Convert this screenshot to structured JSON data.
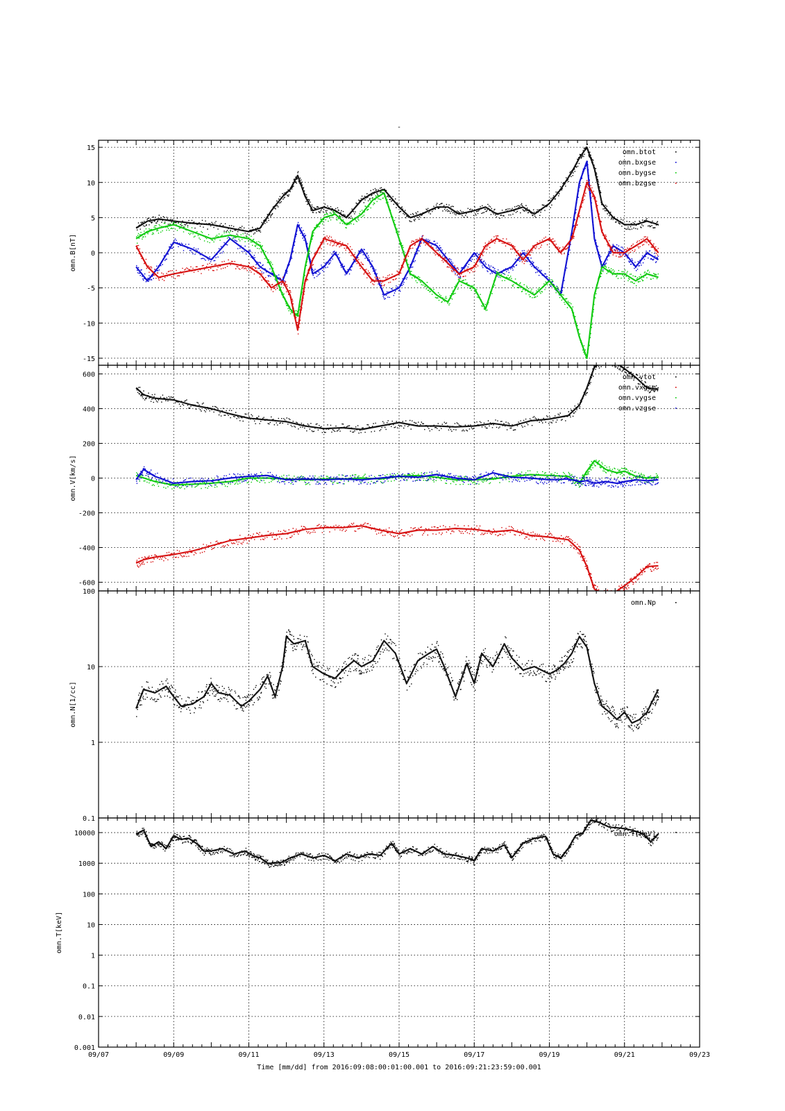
{
  "figure": {
    "title_mark": "-",
    "xaxis_label": "Time [mm/dd]  from 2016:09:08:00:01:00.001  to  2016:09:21:23:59:00.001",
    "xticks": [
      "09/07",
      "09/09",
      "09/11",
      "09/13",
      "09/15",
      "09/17",
      "09/19",
      "09/21",
      "09/23"
    ]
  },
  "colors": {
    "black": "#000000",
    "red": "#d40000",
    "green": "#00c800",
    "blue": "#0000d0"
  },
  "chart_data": [
    {
      "type": "scatter",
      "id": "B",
      "ylabel": "omn.B[nT]",
      "ylim": [
        -16,
        16
      ],
      "yticks": [
        15,
        10,
        5,
        0,
        -5,
        -10,
        -15
      ],
      "ytick_labels": [
        "15",
        "10",
        "5",
        "0",
        "-5",
        "-10",
        "-15"
      ],
      "log": false,
      "legend": "top-right",
      "series": [
        {
          "name": "omn.btot",
          "color": "#000000",
          "x": [
            8.0,
            8.3,
            8.6,
            9.0,
            9.5,
            10.0,
            10.5,
            11.0,
            11.3,
            11.6,
            11.9,
            12.1,
            12.3,
            12.5,
            12.7,
            13.0,
            13.3,
            13.6,
            14.0,
            14.3,
            14.6,
            15.0,
            15.3,
            15.6,
            16.0,
            16.3,
            16.6,
            17.0,
            17.3,
            17.6,
            18.0,
            18.3,
            18.6,
            19.0,
            19.3,
            19.6,
            19.8,
            20.0,
            20.2,
            20.4,
            20.7,
            21.0,
            21.3,
            21.6,
            21.9
          ],
          "y": [
            3.5,
            4.5,
            4.8,
            4.5,
            4.2,
            4.0,
            3.5,
            3.0,
            3.5,
            6.0,
            8.0,
            9.0,
            11.0,
            8.0,
            6.0,
            6.5,
            6.0,
            5.0,
            7.5,
            8.5,
            9.0,
            6.5,
            5.0,
            5.5,
            6.5,
            6.5,
            5.5,
            6.0,
            6.5,
            5.5,
            6.0,
            6.5,
            5.5,
            7.0,
            9.0,
            11.5,
            13.5,
            15.0,
            12.0,
            7.0,
            5.0,
            4.0,
            4.0,
            4.5,
            4.0
          ]
        },
        {
          "name": "omn.bxgse",
          "color": "#0000d0",
          "x": [
            8.0,
            8.3,
            8.6,
            9.0,
            9.5,
            10.0,
            10.5,
            11.0,
            11.3,
            11.6,
            11.9,
            12.1,
            12.3,
            12.5,
            12.7,
            13.0,
            13.3,
            13.6,
            14.0,
            14.3,
            14.6,
            15.0,
            15.3,
            15.6,
            16.0,
            16.3,
            16.6,
            17.0,
            17.3,
            17.6,
            18.0,
            18.3,
            18.6,
            19.0,
            19.3,
            19.6,
            19.8,
            20.0,
            20.2,
            20.4,
            20.7,
            21.0,
            21.3,
            21.6,
            21.9
          ],
          "y": [
            -2.0,
            -4.0,
            -2.0,
            1.5,
            0.5,
            -1.0,
            2.0,
            0.0,
            -2.0,
            -3.0,
            -4.0,
            -1.0,
            4.0,
            2.0,
            -3.0,
            -2.0,
            0.0,
            -3.0,
            0.5,
            -2.0,
            -6.0,
            -5.0,
            -2.0,
            2.0,
            1.0,
            -1.0,
            -3.0,
            0.0,
            -2.0,
            -3.0,
            -2.0,
            0.0,
            -2.0,
            -4.0,
            -6.0,
            3.0,
            10.0,
            13.0,
            2.0,
            -2.0,
            1.0,
            0.0,
            -2.0,
            0.0,
            -1.0
          ]
        },
        {
          "name": "omn.bygse",
          "color": "#00c800",
          "x": [
            8.0,
            8.3,
            8.6,
            9.0,
            9.5,
            10.0,
            10.5,
            11.0,
            11.3,
            11.6,
            11.9,
            12.1,
            12.3,
            12.5,
            12.7,
            13.0,
            13.3,
            13.6,
            14.0,
            14.3,
            14.6,
            15.0,
            15.3,
            15.6,
            16.0,
            16.3,
            16.6,
            17.0,
            17.3,
            17.6,
            18.0,
            18.3,
            18.6,
            19.0,
            19.3,
            19.6,
            19.8,
            20.0,
            20.2,
            20.4,
            20.7,
            21.0,
            21.3,
            21.6,
            21.9
          ],
          "y": [
            2.0,
            3.0,
            3.5,
            4.0,
            3.0,
            2.0,
            2.5,
            2.0,
            1.0,
            -2.0,
            -6.0,
            -8.0,
            -9.0,
            -2.0,
            3.0,
            5.0,
            5.5,
            4.0,
            5.5,
            7.5,
            8.5,
            2.0,
            -3.0,
            -4.0,
            -6.0,
            -7.0,
            -4.0,
            -5.0,
            -8.0,
            -3.0,
            -4.0,
            -5.0,
            -6.0,
            -4.0,
            -6.0,
            -8.0,
            -12.0,
            -15.0,
            -6.0,
            -2.0,
            -3.0,
            -3.0,
            -4.0,
            -3.0,
            -3.5
          ]
        },
        {
          "name": "omn.bzgse",
          "color": "#d40000",
          "x": [
            8.0,
            8.3,
            8.6,
            9.0,
            9.5,
            10.0,
            10.5,
            11.0,
            11.3,
            11.6,
            11.9,
            12.1,
            12.3,
            12.5,
            12.7,
            13.0,
            13.3,
            13.6,
            14.0,
            14.3,
            14.6,
            15.0,
            15.3,
            15.6,
            16.0,
            16.3,
            16.6,
            17.0,
            17.3,
            17.6,
            18.0,
            18.3,
            18.6,
            19.0,
            19.3,
            19.6,
            19.8,
            20.0,
            20.2,
            20.4,
            20.7,
            21.0,
            21.3,
            21.6,
            21.9
          ],
          "y": [
            1.0,
            -2.0,
            -3.5,
            -3.0,
            -2.5,
            -2.0,
            -1.5,
            -2.0,
            -3.0,
            -5.0,
            -4.0,
            -6.0,
            -11.0,
            -4.0,
            -1.0,
            2.0,
            1.5,
            1.0,
            -2.0,
            -4.0,
            -4.0,
            -3.0,
            1.0,
            2.0,
            0.0,
            -1.5,
            -3.0,
            -2.0,
            1.0,
            2.0,
            1.0,
            -1.0,
            1.0,
            2.0,
            0.0,
            2.0,
            6.0,
            10.0,
            8.0,
            3.0,
            0.0,
            0.0,
            1.0,
            2.0,
            0.0
          ]
        }
      ]
    },
    {
      "type": "scatter",
      "id": "V",
      "ylabel": "omn.V[km/s]",
      "ylim": [
        -650,
        650
      ],
      "yticks": [
        600,
        400,
        200,
        0,
        -200,
        -400,
        -600
      ],
      "ytick_labels": [
        "600",
        "400",
        "200",
        "0",
        "-200",
        "-400",
        "-600"
      ],
      "log": false,
      "legend": "top-right",
      "series": [
        {
          "name": "omn.vtot",
          "color": "#000000",
          "x": [
            8.0,
            8.2,
            8.5,
            9.0,
            9.5,
            10.0,
            10.5,
            11.0,
            11.5,
            12.0,
            12.5,
            13.0,
            13.5,
            14.0,
            14.5,
            15.0,
            15.5,
            16.0,
            16.5,
            17.0,
            17.5,
            18.0,
            18.5,
            19.0,
            19.5,
            19.8,
            20.0,
            20.2,
            20.5,
            20.8,
            21.0,
            21.3,
            21.6,
            21.9
          ],
          "y": [
            520,
            480,
            460,
            450,
            420,
            400,
            370,
            345,
            335,
            325,
            300,
            285,
            290,
            280,
            300,
            320,
            300,
            300,
            295,
            300,
            315,
            300,
            330,
            340,
            360,
            420,
            520,
            640,
            680,
            660,
            630,
            580,
            520,
            510
          ]
        },
        {
          "name": "omn.vxgse",
          "color": "#d40000",
          "x": [
            8.0,
            8.2,
            8.5,
            9.0,
            9.5,
            10.0,
            10.5,
            11.0,
            11.5,
            12.0,
            12.5,
            13.0,
            13.5,
            14.0,
            14.5,
            15.0,
            15.5,
            16.0,
            16.5,
            17.0,
            17.5,
            18.0,
            18.5,
            19.0,
            19.5,
            19.8,
            20.0,
            20.2,
            20.5,
            20.8,
            21.0,
            21.3,
            21.6,
            21.9
          ],
          "y": [
            -490,
            -470,
            -455,
            -440,
            -420,
            -390,
            -360,
            -345,
            -330,
            -320,
            -295,
            -285,
            -285,
            -275,
            -300,
            -320,
            -300,
            -300,
            -290,
            -295,
            -310,
            -300,
            -330,
            -340,
            -355,
            -415,
            -510,
            -640,
            -670,
            -650,
            -620,
            -570,
            -510,
            -505
          ]
        },
        {
          "name": "omn.vygse",
          "color": "#00c800",
          "x": [
            8.0,
            8.5,
            9.0,
            9.5,
            10.0,
            10.5,
            11.0,
            11.5,
            12.0,
            12.5,
            13.0,
            13.5,
            14.0,
            14.5,
            15.0,
            15.5,
            16.0,
            16.5,
            17.0,
            17.5,
            18.0,
            18.5,
            19.0,
            19.5,
            19.8,
            20.0,
            20.2,
            20.5,
            20.8,
            21.0,
            21.3,
            21.6,
            21.9
          ],
          "y": [
            15,
            -20,
            -40,
            -35,
            -30,
            -20,
            0,
            0,
            -5,
            -10,
            -5,
            -5,
            0,
            -5,
            10,
            15,
            5,
            -10,
            -10,
            -5,
            10,
            20,
            15,
            10,
            -30,
            40,
            100,
            50,
            30,
            40,
            10,
            0,
            5
          ]
        },
        {
          "name": "omn.vzgse",
          "color": "#0000d0",
          "x": [
            8.0,
            8.2,
            8.5,
            9.0,
            9.5,
            10.0,
            10.5,
            11.0,
            11.5,
            12.0,
            12.5,
            13.0,
            13.5,
            14.0,
            14.5,
            15.0,
            15.5,
            16.0,
            16.5,
            17.0,
            17.5,
            18.0,
            18.5,
            19.0,
            19.5,
            19.8,
            20.0,
            20.2,
            20.5,
            20.8,
            21.0,
            21.3,
            21.6,
            21.9
          ],
          "y": [
            -10,
            50,
            10,
            -30,
            -20,
            -15,
            0,
            10,
            15,
            -10,
            -5,
            -10,
            -5,
            -10,
            0,
            10,
            5,
            20,
            0,
            -10,
            30,
            5,
            0,
            -10,
            -5,
            -20,
            -15,
            -30,
            -20,
            -30,
            -20,
            -10,
            -15,
            -10
          ]
        }
      ]
    },
    {
      "type": "scatter",
      "id": "N",
      "ylabel": "omn.N[1/cc]",
      "ylim": [
        0.1,
        100
      ],
      "yticks": [
        100,
        10,
        1,
        0.1
      ],
      "ytick_labels": [
        "100",
        "10",
        "1",
        "0.1"
      ],
      "log": true,
      "legend": "top-right",
      "series": [
        {
          "name": "omn.Np",
          "color": "#000000",
          "x": [
            8.0,
            8.2,
            8.5,
            8.8,
            9.0,
            9.2,
            9.5,
            9.8,
            10.0,
            10.2,
            10.5,
            10.8,
            11.0,
            11.3,
            11.5,
            11.7,
            11.9,
            12.0,
            12.2,
            12.5,
            12.7,
            13.0,
            13.3,
            13.5,
            13.8,
            14.0,
            14.3,
            14.6,
            14.9,
            15.2,
            15.5,
            15.8,
            16.0,
            16.2,
            16.5,
            16.8,
            17.0,
            17.2,
            17.5,
            17.8,
            18.0,
            18.3,
            18.6,
            19.0,
            19.2,
            19.4,
            19.6,
            19.8,
            20.0,
            20.2,
            20.4,
            20.6,
            20.8,
            21.0,
            21.2,
            21.4,
            21.6,
            21.8,
            21.9
          ],
          "y": [
            2.8,
            5.0,
            4.5,
            5.5,
            4.0,
            3.0,
            3.2,
            4.0,
            6.0,
            4.5,
            4.2,
            3.0,
            3.5,
            5.0,
            7.5,
            4.0,
            10.0,
            25.0,
            20.0,
            22.0,
            10.0,
            8.0,
            7.0,
            9.0,
            12.0,
            10.0,
            12.0,
            22.0,
            15.0,
            6.0,
            12.0,
            15.0,
            17.0,
            10.0,
            4.0,
            11.0,
            6.0,
            15.0,
            10.0,
            20.0,
            13.0,
            9.0,
            10.0,
            8.0,
            9.0,
            11.0,
            15.0,
            25.0,
            18.0,
            6.0,
            3.0,
            2.5,
            2.0,
            2.5,
            1.8,
            2.0,
            2.5,
            4.0,
            5.0
          ]
        }
      ]
    },
    {
      "type": "scatter",
      "id": "T",
      "ylabel": "omn.T[keV]",
      "ylim": [
        0.001,
        30000
      ],
      "yticks": [
        10000,
        1000,
        100,
        10,
        1,
        0.1,
        0.01,
        0.001
      ],
      "ytick_labels": [
        "10000",
        "1000",
        "100",
        "10",
        "1",
        "0.1",
        "0.01",
        "0.001"
      ],
      "log": true,
      "legend": "top-right",
      "series": [
        {
          "name": "omn.T[keV]",
          "color": "#000000",
          "x": [
            8.0,
            8.2,
            8.4,
            8.6,
            8.8,
            9.0,
            9.2,
            9.4,
            9.6,
            9.8,
            10.0,
            10.3,
            10.6,
            10.9,
            11.1,
            11.3,
            11.5,
            11.7,
            11.9,
            12.1,
            12.4,
            12.7,
            13.0,
            13.3,
            13.6,
            13.9,
            14.2,
            14.5,
            14.8,
            15.0,
            15.3,
            15.6,
            15.9,
            16.2,
            16.5,
            16.8,
            17.0,
            17.2,
            17.5,
            17.8,
            18.0,
            18.3,
            18.6,
            18.9,
            19.1,
            19.3,
            19.5,
            19.7,
            19.9,
            20.1,
            20.3,
            20.6,
            20.9,
            21.2,
            21.5,
            21.7,
            21.9
          ],
          "y": [
            9000,
            12000,
            3500,
            5000,
            3000,
            8000,
            6000,
            6500,
            4500,
            2500,
            2500,
            3000,
            2000,
            2500,
            1800,
            1500,
            1000,
            1000,
            1100,
            1500,
            2000,
            1500,
            1800,
            1200,
            2000,
            1500,
            2000,
            1800,
            4500,
            2000,
            3000,
            2000,
            3500,
            2000,
            1800,
            1500,
            1200,
            3000,
            2500,
            4000,
            1500,
            4500,
            6500,
            7500,
            2000,
            1500,
            3000,
            8000,
            10000,
            25000,
            22000,
            15000,
            14000,
            12000,
            9000,
            5000,
            9000
          ]
        }
      ]
    }
  ]
}
